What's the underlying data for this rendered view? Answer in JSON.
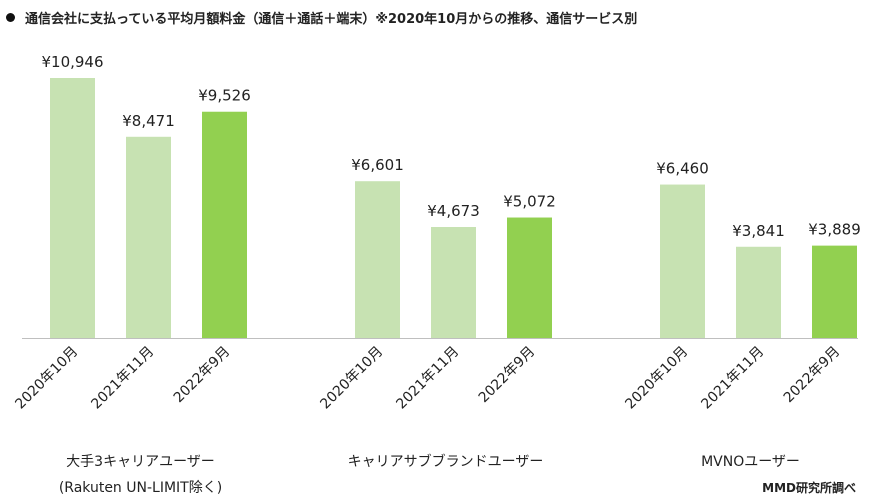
{
  "title": "通信会社に支払っている平均月額料金（通信＋通話＋端末）※2020年10月からの推移、通信サービス別",
  "source": "MMD研究所調べ",
  "colors": {
    "light": "#c7e2b2",
    "dark": "#92d050"
  },
  "chart_data": {
    "type": "bar",
    "title": "通信会社に支払っている平均月額料金（通信＋通話＋端末）※2020年10月からの推移、通信サービス別",
    "periods": [
      "2020年10月",
      "2021年11月",
      "2022年9月"
    ],
    "groups": [
      {
        "label": "大手3キャリアユーザー",
        "sublabel": "(Rakuten UN-LIMIT除く)",
        "values": [
          10946,
          8471,
          9526
        ]
      },
      {
        "label": "キャリアサブブランドユーザー",
        "sublabel": "",
        "values": [
          6601,
          4673,
          5072
        ]
      },
      {
        "label": "MVNOユーザー",
        "sublabel": "",
        "values": [
          6460,
          3841,
          3889
        ]
      }
    ],
    "value_labels": [
      [
        "¥10,946",
        "¥8,471",
        "¥9,526"
      ],
      [
        "¥6,601",
        "¥4,673",
        "¥5,072"
      ],
      [
        "¥6,460",
        "¥3,841",
        "¥3,889"
      ]
    ],
    "highlight_period": "2022年9月",
    "ylim": [
      0,
      11000
    ],
    "grid": false,
    "legend": "none"
  }
}
